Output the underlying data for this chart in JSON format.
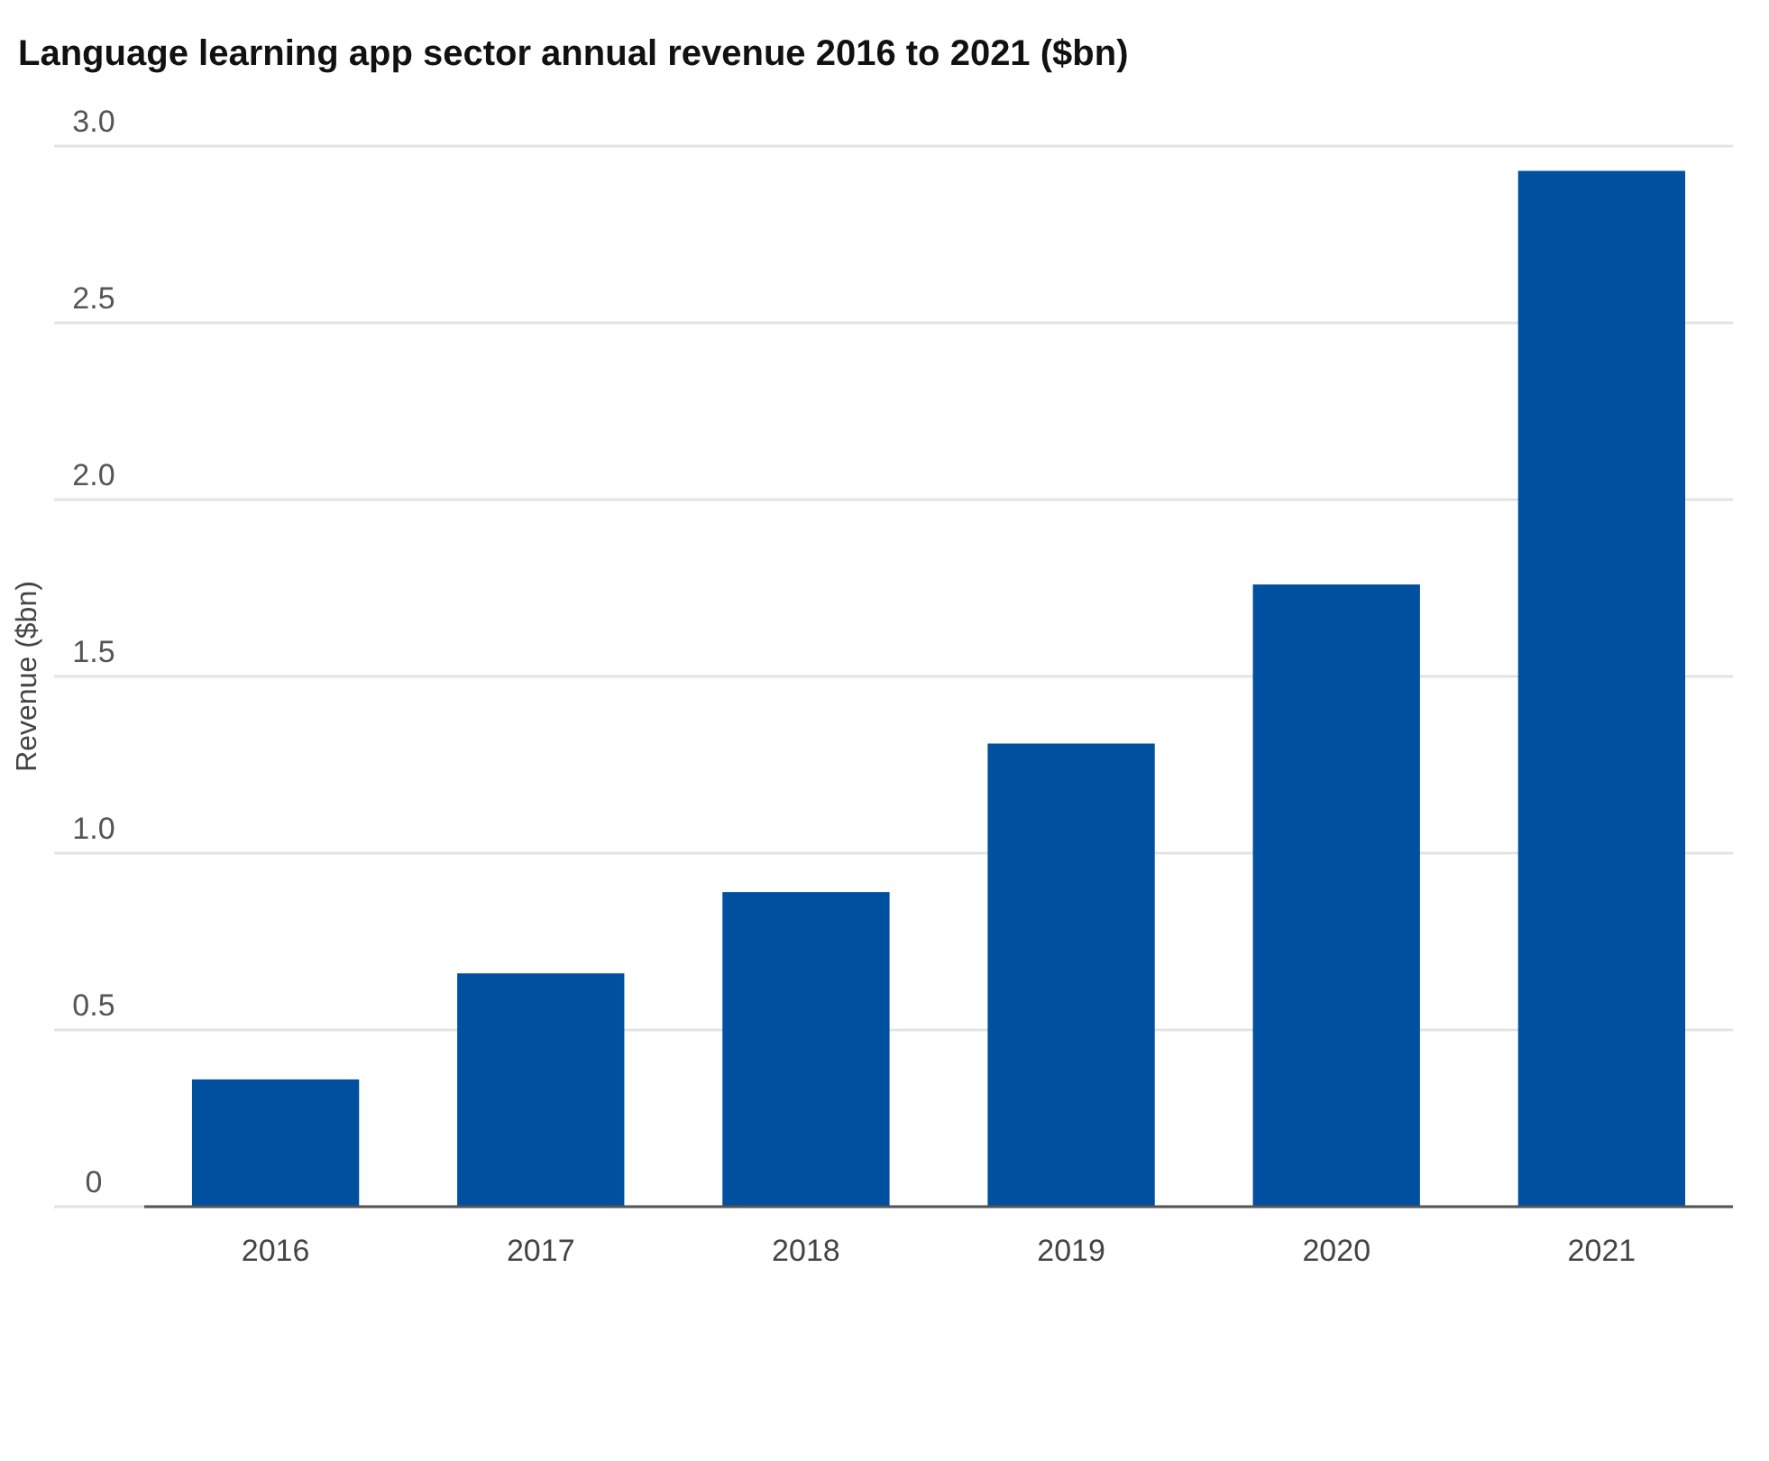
{
  "chart_data": {
    "type": "bar",
    "title": "Language learning app sector annual revenue 2016 to 2021 ($bn)",
    "ylabel": "Revenue ($bn)",
    "categories": [
      "2016",
      "2017",
      "2018",
      "2019",
      "2020",
      "2021"
    ],
    "values": [
      0.36,
      0.66,
      0.89,
      1.31,
      1.76,
      2.93
    ],
    "color": "#0050a0",
    "ylim": [
      0,
      3
    ],
    "yticks": [
      0,
      0.5,
      {
        "value": 1,
        "label": "1.0"
      },
      1.5,
      {
        "value": 2,
        "label": "2.0"
      },
      2.5,
      {
        "value": 3,
        "label": "3.0"
      }
    ],
    "grid": "y"
  }
}
